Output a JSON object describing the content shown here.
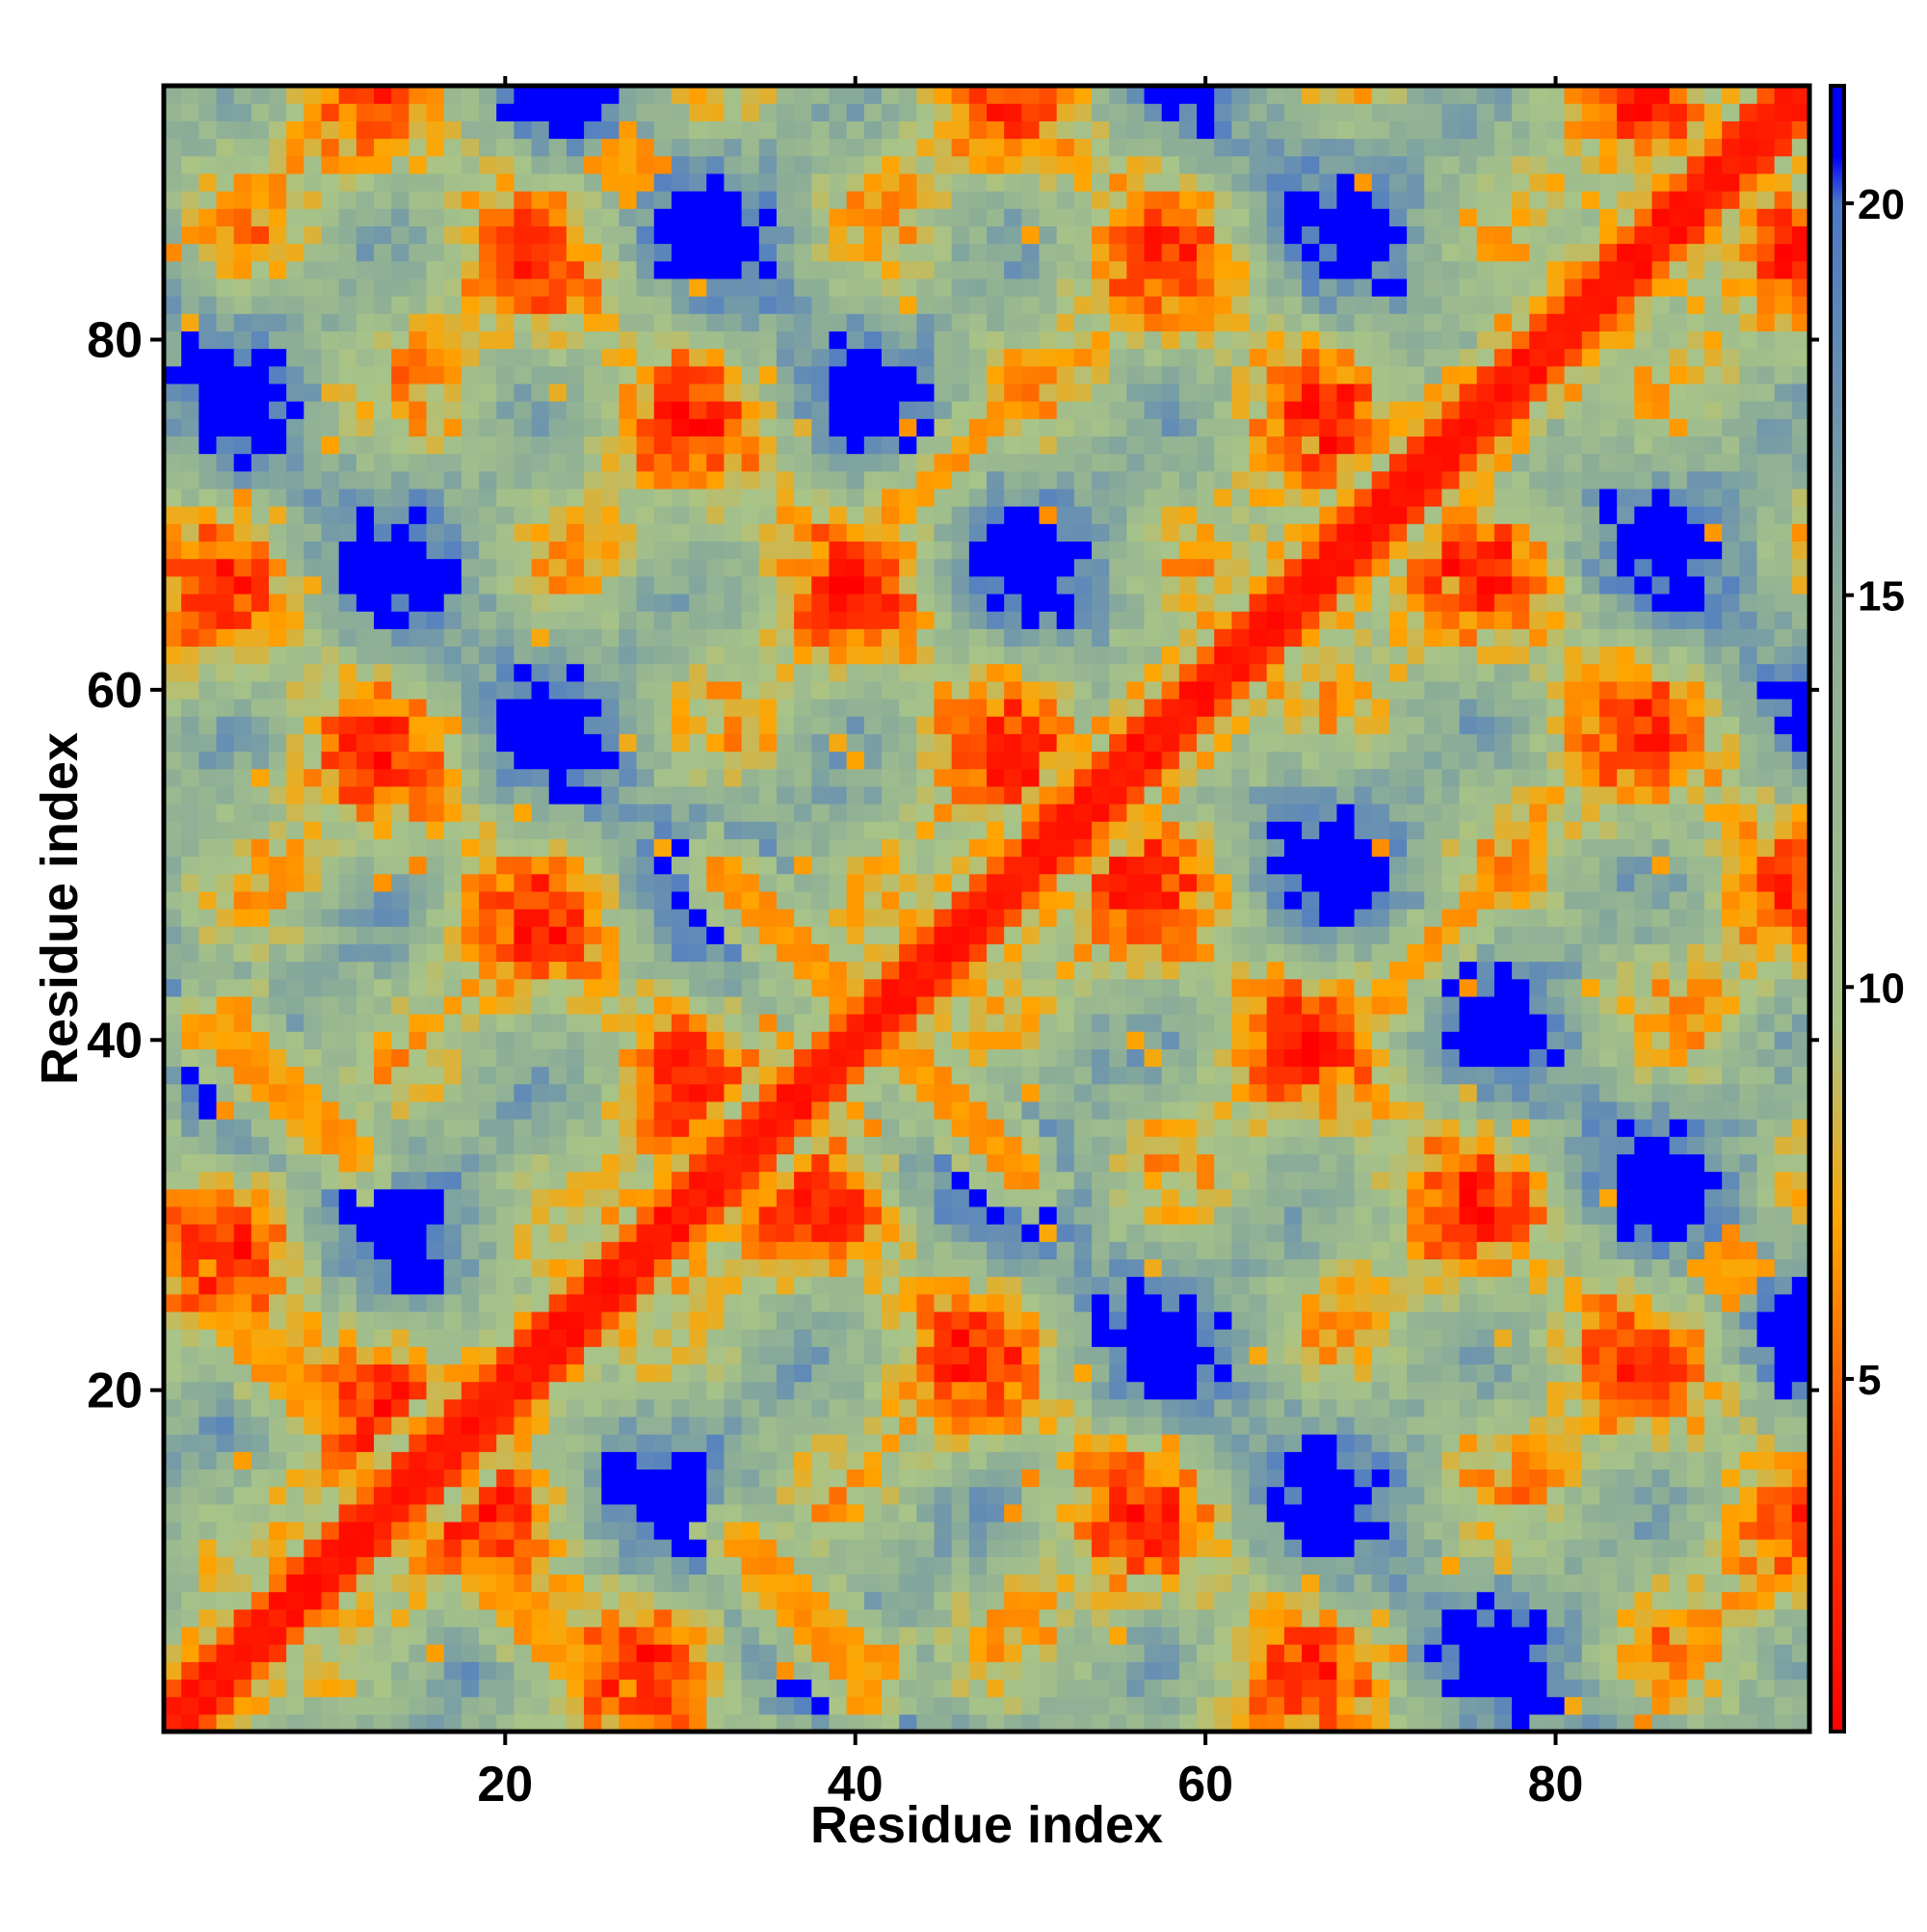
{
  "chart_data": {
    "type": "heatmap",
    "title": "",
    "xlabel": "Residue index",
    "ylabel": "Residue index",
    "n_residues": 94,
    "xlim": [
      0.5,
      94.5
    ],
    "ylim": [
      0.5,
      94.5
    ],
    "x_ticks": [
      20,
      40,
      60,
      80
    ],
    "y_ticks": [
      20,
      40,
      60,
      80
    ],
    "x_tick_labels": [
      "20",
      "40",
      "60",
      "80"
    ],
    "y_tick_labels": [
      "20",
      "40",
      "60",
      "80"
    ],
    "colorbar": {
      "range": [
        0.5,
        21.5
      ],
      "ticks": [
        5,
        10,
        15,
        20
      ],
      "tick_labels": [
        "5",
        "10",
        "15",
        "20"
      ],
      "stops": [
        {
          "value": 0.5,
          "color": "#ff0000"
        },
        {
          "value": 4.0,
          "color": "#ff4400"
        },
        {
          "value": 7.0,
          "color": "#ffa500"
        },
        {
          "value": 9.5,
          "color": "#a8c488"
        },
        {
          "value": 15.0,
          "color": "#8aac98"
        },
        {
          "value": 20.0,
          "color": "#4a78c8"
        },
        {
          "value": 20.6,
          "color": "#0000ff"
        },
        {
          "value": 21.5,
          "color": "#0000ff"
        }
      ]
    },
    "grid": false,
    "legend": "colorbar right",
    "value_encoding": "symmetric matrix of pairwise residue distances; diagonal band ~0-3, beta-strand pairing ridges ~5-8 (orange), mid-range ~10-17 (green-grey), saturated ~21 (blue)",
    "structural_features": [
      {
        "kind": "parallel-ridge",
        "anchor": [
          15,
          15
        ],
        "description": "band near diagonal 1-94"
      },
      {
        "kind": "antiparallel-ridge",
        "from": [
          2,
          26
        ],
        "to": [
          12,
          16
        ],
        "value": 6
      },
      {
        "kind": "antiparallel-ridge",
        "from": [
          4,
          42
        ],
        "to": [
          12,
          33
        ],
        "value": 6
      },
      {
        "kind": "antiparallel-ridge",
        "from": [
          16,
          14
        ],
        "to": [
          25,
          4
        ],
        "value": 6
      },
      {
        "kind": "antiparallel-ridge",
        "from": [
          34,
          10
        ],
        "to": [
          41,
          2
        ],
        "value": 6
      },
      {
        "kind": "antiparallel-ridge",
        "from": [
          32,
          50
        ],
        "to": [
          40,
          42
        ],
        "value": 6
      },
      {
        "kind": "antiparallel-ridge",
        "from": [
          42,
          40
        ],
        "to": [
          50,
          32
        ],
        "value": 6
      },
      {
        "kind": "antiparallel-ridge",
        "from": [
          42,
          70
        ],
        "to": [
          50,
          77
        ],
        "value": 6
      },
      {
        "kind": "antiparallel-ridge",
        "from": [
          70,
          42
        ],
        "to": [
          77,
          50
        ],
        "value": 6
      },
      {
        "kind": "block",
        "center": [
          27,
          90
        ],
        "value": 6
      },
      {
        "kind": "block",
        "center": [
          90,
          27
        ],
        "value": 6
      }
    ]
  }
}
